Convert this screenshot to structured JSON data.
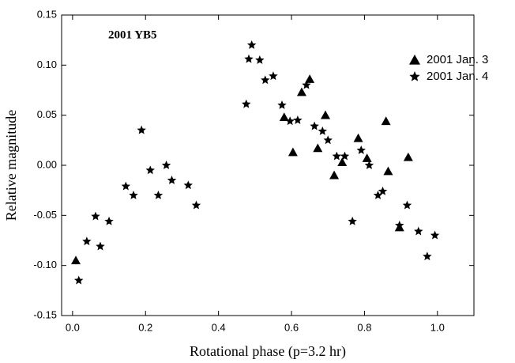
{
  "chart_data": {
    "type": "scatter",
    "annotation": "2001 YB5",
    "x_label": "Rotational phase (p=3.2 hr)",
    "y_label": "Relative magnitude",
    "xlim": [
      -0.03,
      1.1
    ],
    "ylim": [
      -0.15,
      0.15
    ],
    "xticks": [
      {
        "value": 0,
        "label": "0.0"
      },
      {
        "value": 0.2,
        "label": "0.2"
      },
      {
        "value": 0.4,
        "label": "0.4"
      },
      {
        "value": 0.6,
        "label": "0.6"
      },
      {
        "value": 0.8,
        "label": "0.8"
      },
      {
        "value": 1,
        "label": "1.0"
      }
    ],
    "yticks": [
      {
        "value": -0.15,
        "label": "-0.15"
      },
      {
        "value": -0.1,
        "label": "-0.10"
      },
      {
        "value": -0.05,
        "label": "-0.05"
      },
      {
        "value": 0,
        "label": "0.00"
      },
      {
        "value": 0.05,
        "label": "0.05"
      },
      {
        "value": 0.1,
        "label": "0.10"
      },
      {
        "value": 0.15,
        "label": "0.15"
      }
    ],
    "legend_position": "upper right",
    "series": [
      {
        "name": "2001 Jan. 3",
        "color": "#000000",
        "marker": "triangle",
        "x": [
          0.009,
          0.58,
          0.604,
          0.628,
          0.65,
          0.672,
          0.693,
          0.717,
          0.739,
          0.783,
          0.807,
          0.859,
          0.865,
          0.896,
          0.92
        ],
        "values": [
          -0.095,
          0.048,
          0.013,
          0.073,
          0.086,
          0.017,
          0.05,
          -0.01,
          0.003,
          0.027,
          0.007,
          0.044,
          -0.006,
          -0.062,
          0.008
        ]
      },
      {
        "name": "2001 Jan. 4",
        "color": "#000000",
        "marker": "star",
        "x": [
          0.017,
          0.039,
          0.063,
          0.076,
          0.1,
          0.146,
          0.167,
          0.189,
          0.213,
          0.235,
          0.257,
          0.272,
          0.317,
          0.339,
          0.476,
          0.483,
          0.491,
          0.513,
          0.528,
          0.55,
          0.574,
          0.596,
          0.617,
          0.641,
          0.663,
          0.685,
          0.7,
          0.724,
          0.746,
          0.767,
          0.791,
          0.813,
          0.837,
          0.85,
          0.896,
          0.917,
          0.948,
          0.972,
          0.993
        ],
        "values": [
          -0.115,
          -0.076,
          -0.051,
          -0.081,
          -0.056,
          -0.021,
          -0.03,
          0.035,
          -0.005,
          -0.03,
          0,
          -0.015,
          -0.02,
          -0.04,
          0.061,
          0.106,
          0.12,
          0.105,
          0.085,
          0.089,
          0.06,
          0.044,
          0.045,
          0.08,
          0.039,
          0.034,
          0.025,
          0.009,
          0.009,
          -0.056,
          0.015,
          0,
          -0.03,
          -0.026,
          -0.06,
          -0.04,
          -0.066,
          -0.091,
          -0.07
        ]
      }
    ]
  }
}
